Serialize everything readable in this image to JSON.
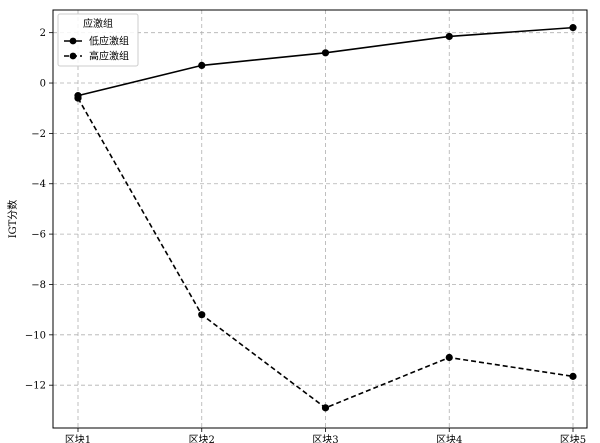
{
  "chart_data": {
    "type": "line",
    "categories": [
      "区块1",
      "区块2",
      "区块3",
      "区块4",
      "区块5"
    ],
    "series": [
      {
        "name": "低应激组",
        "values": [
          -0.5,
          0.7,
          1.2,
          1.85,
          2.2
        ],
        "line_style": "solid",
        "marker": "circle"
      },
      {
        "name": "高应激组",
        "values": [
          -0.6,
          -9.2,
          -12.9,
          -10.9,
          -11.65
        ],
        "line_style": "dashed",
        "marker": "circle"
      }
    ],
    "title": "",
    "xlabel": "",
    "ylabel": "IGT分数",
    "ylim": [
      -13.7,
      2.9
    ],
    "yticks": [
      2,
      0,
      -2,
      -4,
      -6,
      -8,
      -10,
      -12
    ],
    "ytick_labels": [
      "2",
      "0",
      "−2",
      "−4",
      "−6",
      "−8",
      "−10",
      "−12"
    ],
    "grid": true,
    "legend": {
      "title": "应激组",
      "placement": "top-left"
    },
    "colors": {
      "line": "#000000",
      "grid": "#b0b0b0",
      "frame": "#000000"
    }
  }
}
